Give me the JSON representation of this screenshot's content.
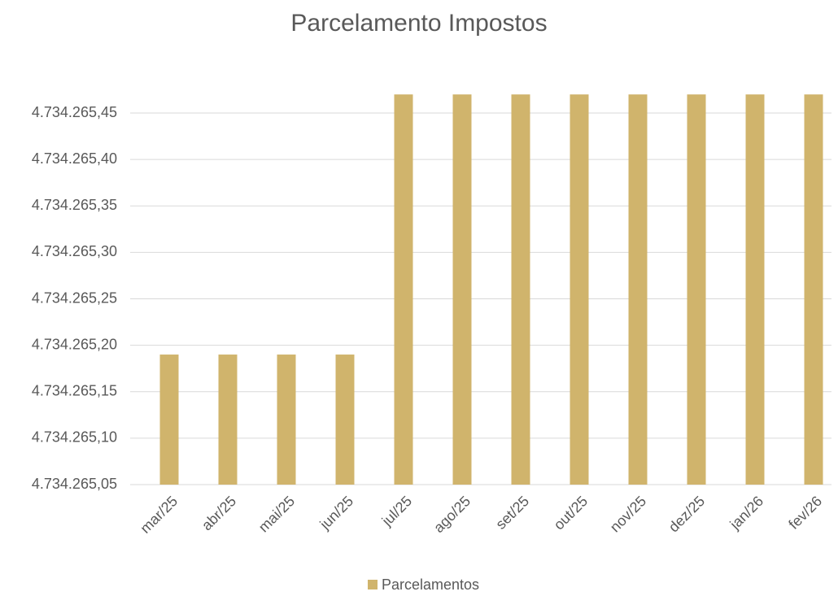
{
  "chart_data": {
    "type": "bar",
    "title": "Parcelamento Impostos",
    "categories": [
      "mar/25",
      "abr/25",
      "mai/25",
      "jun/25",
      "jul/25",
      "ago/25",
      "set/25",
      "out/25",
      "nov/25",
      "dez/25",
      "jan/26",
      "fev/26"
    ],
    "series": [
      {
        "name": "Parcelamentos",
        "color": "#d0b46c",
        "values": [
          4734265.19,
          4734265.19,
          4734265.19,
          4734265.19,
          4734265.47,
          4734265.47,
          4734265.47,
          4734265.47,
          4734265.47,
          4734265.47,
          4734265.47,
          4734265.47
        ]
      }
    ],
    "ylim": [
      4734265.05,
      4734265.47
    ],
    "yticks": [
      {
        "value": 4734265.05,
        "label": "4.734.265,05"
      },
      {
        "value": 4734265.1,
        "label": "4.734.265,10"
      },
      {
        "value": 4734265.15,
        "label": "4.734.265,15"
      },
      {
        "value": 4734265.2,
        "label": "4.734.265,20"
      },
      {
        "value": 4734265.25,
        "label": "4.734.265,25"
      },
      {
        "value": 4734265.3,
        "label": "4.734.265,30"
      },
      {
        "value": 4734265.35,
        "label": "4.734.265,35"
      },
      {
        "value": 4734265.4,
        "label": "4.734.265,40"
      },
      {
        "value": 4734265.45,
        "label": "4.734.265,45"
      }
    ],
    "grid": true,
    "legend": "bottom"
  }
}
